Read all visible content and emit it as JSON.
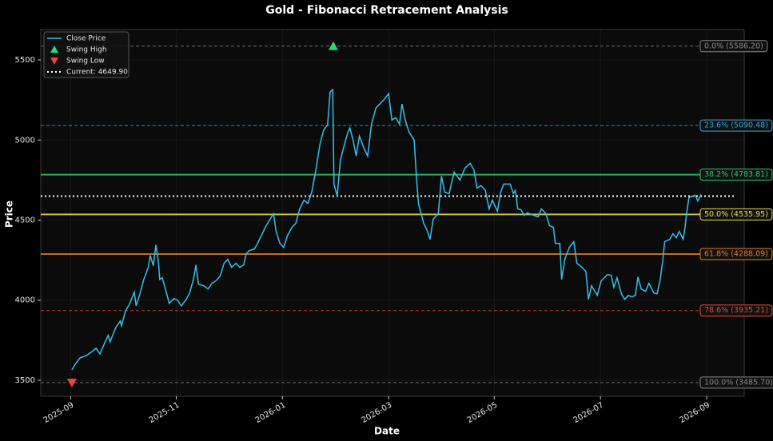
{
  "chart_data": {
    "type": "line",
    "title": "Gold - Fibonacci Retracement Analysis",
    "x_label": "Date",
    "y_label": "Price",
    "xlim": [
      2025.62,
      2026.726
    ],
    "ylim": [
      3400,
      5690
    ],
    "xticks": [
      {
        "value": 2025.667,
        "label": "2025-09"
      },
      {
        "value": 2025.833,
        "label": "2025-11"
      },
      {
        "value": 2026.0,
        "label": "2026-01"
      },
      {
        "value": 2026.167,
        "label": "2026-03"
      },
      {
        "value": 2026.333,
        "label": "2026-05"
      },
      {
        "value": 2026.5,
        "label": "2026-07"
      },
      {
        "value": 2026.667,
        "label": "2026-09"
      }
    ],
    "yticks": [
      3500,
      4000,
      4500,
      5000,
      5500
    ],
    "grid": true,
    "legend": "upper left",
    "series": [
      {
        "name": "Close Price",
        "color": "#33c1ec",
        "x": [
          2025.669,
          2025.675,
          2025.682,
          2025.692,
          2025.701,
          2025.707,
          2025.713,
          2025.719,
          2025.726,
          2025.729,
          2025.738,
          2025.745,
          2025.747,
          2025.753,
          2025.76,
          2025.767,
          2025.77,
          2025.776,
          2025.782,
          2025.789,
          2025.792,
          2025.797,
          2025.801,
          2025.805,
          2025.807,
          2025.811,
          2025.817,
          2025.822,
          2025.829,
          2025.835,
          2025.841,
          2025.848,
          2025.854,
          2025.86,
          2025.864,
          2025.868,
          2025.876,
          2025.883,
          2025.889,
          2025.895,
          2025.902,
          2025.908,
          2025.914,
          2025.92,
          2025.927,
          2025.933,
          2025.939,
          2025.943,
          2025.948,
          2025.956,
          2025.961,
          2025.967,
          2025.973,
          2025.979,
          2025.986,
          2025.99,
          2025.996,
          2026.002,
          2026.008,
          2026.015,
          2026.021,
          2026.027,
          2026.034,
          2026.04,
          2026.046,
          2026.052,
          2026.059,
          2026.065,
          2026.071,
          2026.075,
          2026.079,
          2026.081,
          2026.086,
          2026.091,
          2026.096,
          2026.103,
          2026.106,
          2026.111,
          2026.116,
          2026.121,
          2026.128,
          2026.134,
          2026.14,
          2026.147,
          2026.153,
          2026.159,
          2026.167,
          2026.172,
          2026.178,
          2026.184,
          2026.188,
          2026.193,
          2026.199,
          2026.207,
          2026.211,
          2026.214,
          2026.222,
          2026.228,
          2026.232,
          2026.237,
          2026.245,
          2026.25,
          2026.255,
          2026.262,
          2026.27,
          2026.279,
          2026.287,
          2026.295,
          2026.301,
          2026.306,
          2026.312,
          2026.319,
          2026.325,
          2026.33,
          2026.338,
          2026.343,
          2026.348,
          2026.358,
          2026.363,
          2026.366,
          2026.37,
          2026.375,
          2026.38,
          2026.385,
          2026.395,
          2026.402,
          2026.407,
          2026.414,
          2026.42,
          2026.426,
          2026.429,
          2026.436,
          2026.439,
          2026.444,
          2026.451,
          2026.458,
          2026.463,
          2026.471,
          2026.477,
          2026.481,
          2026.486,
          2026.495,
          2026.501,
          2026.511,
          2026.517,
          2026.521,
          2026.526,
          2026.533,
          2026.538,
          2026.544,
          2026.549,
          2026.555,
          2026.559,
          2026.564,
          2026.571,
          2026.576,
          2026.584,
          2026.589,
          2026.594,
          2026.598,
          2026.601,
          2026.609,
          2026.614,
          2026.619,
          2026.624,
          2026.63,
          2026.633,
          2026.635,
          2026.639,
          2026.644,
          2026.649,
          2026.653,
          2026.658
        ],
        "values": [
          3565,
          3605,
          3640,
          3655,
          3680,
          3700,
          3665,
          3720,
          3780,
          3740,
          3830,
          3870,
          3840,
          3930,
          3980,
          4050,
          3965,
          4040,
          4130,
          4205,
          4280,
          4215,
          4345,
          4240,
          4130,
          4140,
          4055,
          3980,
          4010,
          4000,
          3965,
          4000,
          4045,
          4130,
          4220,
          4100,
          4090,
          4070,
          4105,
          4120,
          4150,
          4230,
          4255,
          4205,
          4230,
          4205,
          4220,
          4290,
          4310,
          4320,
          4355,
          4405,
          4455,
          4495,
          4540,
          4430,
          4355,
          4330,
          4405,
          4455,
          4480,
          4570,
          4625,
          4605,
          4675,
          4800,
          4975,
          5065,
          5095,
          5300,
          5315,
          4725,
          4650,
          4875,
          4950,
          5050,
          5075,
          5000,
          4900,
          5025,
          4950,
          4900,
          5100,
          5200,
          5225,
          5250,
          5290,
          5125,
          5140,
          5100,
          5225,
          5125,
          5050,
          5000,
          4750,
          4600,
          4480,
          4430,
          4380,
          4505,
          4540,
          4775,
          4675,
          4665,
          4800,
          4750,
          4825,
          4855,
          4815,
          4700,
          4715,
          4685,
          4570,
          4625,
          4555,
          4675,
          4725,
          4725,
          4665,
          4685,
          4570,
          4565,
          4530,
          4545,
          4530,
          4520,
          4570,
          4540,
          4465,
          4455,
          4355,
          4355,
          4130,
          4255,
          4330,
          4365,
          4230,
          4205,
          4180,
          4005,
          4090,
          4030,
          4120,
          4160,
          4155,
          4080,
          4140,
          4040,
          4005,
          4030,
          4020,
          4030,
          4145,
          4070,
          4055,
          4105,
          4045,
          4040,
          4130,
          4255,
          4365,
          4380,
          4415,
          4390,
          4430,
          4380,
          4455,
          4530,
          4640,
          4650,
          4655,
          4620,
          4660
        ]
      }
    ],
    "markers": [
      {
        "name": "Swing High",
        "color": "#22dd77",
        "marker": "up",
        "x": [
          2026.08
        ],
        "values": [
          5586.2
        ]
      },
      {
        "name": "Swing Low",
        "color": "#ef4444",
        "marker": "down",
        "x": [
          2025.669
        ],
        "values": [
          3485.7
        ]
      }
    ],
    "current": {
      "name": "Current: 4649.90",
      "value": 4649.9,
      "color": "#ffffff"
    },
    "levels": [
      {
        "label": "0.0% (5586.20)",
        "value": 5586.2,
        "color": "#888888",
        "style": "dashed"
      },
      {
        "label": "23.6% (5090.48)",
        "value": 5090.48,
        "color": "#3aa6d8",
        "style": "dashed"
      },
      {
        "label": "38.2% (4783.81)",
        "value": 4783.81,
        "color": "#2ecc71",
        "style": "solid"
      },
      {
        "label": "50.0% (4535.95)",
        "value": 4535.95,
        "color": "#e8e04a",
        "style": "solid"
      },
      {
        "label": "61.8% (4288.09)",
        "value": 4288.09,
        "color": "#e67e22",
        "style": "solid"
      },
      {
        "label": "78.6% (3935.21)",
        "value": 3935.21,
        "color": "#e74c3c",
        "style": "dashed"
      },
      {
        "label": "100.0% (3485.70)",
        "value": 3485.7,
        "color": "#888888",
        "style": "dashed"
      }
    ]
  }
}
